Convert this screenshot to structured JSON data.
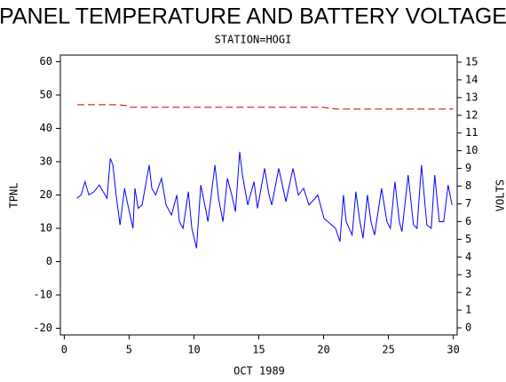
{
  "chart_data": {
    "type": "line",
    "title": "PANEL TEMPERATURE AND BATTERY VOLTAGE",
    "subtitle": "STATION=HOGI",
    "x_label": "OCT 1989",
    "y_label": "TPNL",
    "y2_label": "VOLTS",
    "xlim": [
      -0.3,
      30.3
    ],
    "xticks": [
      0,
      5,
      10,
      15,
      20,
      25,
      30
    ],
    "ylim": [
      -22,
      62
    ],
    "yticks": [
      -20,
      -10,
      0,
      10,
      20,
      30,
      40,
      50,
      60
    ],
    "y2lim": [
      -0.4,
      15.4
    ],
    "y2ticks": [
      0,
      1,
      2,
      3,
      4,
      5,
      6,
      7,
      8,
      9,
      10,
      11,
      12,
      13,
      14,
      15
    ],
    "series": [
      {
        "name": "TPNL",
        "color": "#0000ff",
        "axis": "y",
        "x": [
          0.96,
          1.3,
          1.6,
          1.9,
          2.3,
          2.7,
          3.0,
          3.3,
          3.55,
          3.75,
          4.0,
          4.3,
          4.65,
          4.85,
          5.3,
          5.45,
          5.7,
          6.0,
          6.55,
          6.75,
          7.05,
          7.5,
          7.85,
          8.27,
          8.68,
          8.88,
          9.16,
          9.57,
          9.84,
          10.2,
          10.53,
          10.94,
          11.08,
          11.62,
          11.9,
          12.24,
          12.58,
          12.92,
          13.2,
          13.53,
          13.74,
          14.15,
          14.63,
          14.9,
          15.45,
          15.79,
          16.0,
          16.54,
          16.82,
          17.09,
          17.64,
          18.05,
          18.46,
          18.87,
          19.34,
          19.55,
          20.03,
          20.92,
          21.26,
          21.53,
          21.74,
          22.2,
          22.49,
          22.76,
          23.04,
          23.38,
          23.65,
          23.93,
          24.47,
          24.88,
          25.15,
          25.5,
          25.84,
          26.04,
          26.52,
          26.93,
          27.2,
          27.55,
          27.96,
          28.3,
          28.57,
          28.92,
          29.26,
          29.6,
          29.9
        ],
        "values": [
          19,
          20,
          24,
          20,
          21,
          23,
          21,
          19,
          31,
          29,
          20,
          11,
          22,
          18,
          10,
          22,
          16,
          17,
          29,
          22,
          20,
          25,
          17,
          14,
          20,
          12,
          10,
          21,
          10,
          4,
          23,
          15,
          12,
          29,
          19,
          12,
          25,
          20,
          15,
          33,
          26,
          17,
          24,
          16,
          28,
          20,
          17,
          28,
          23,
          18,
          28,
          20,
          22,
          17,
          19,
          20,
          13,
          10,
          6,
          20,
          12,
          8,
          21,
          13,
          7,
          20,
          12,
          8,
          22,
          12,
          10,
          24,
          12,
          9,
          26,
          11,
          10,
          29,
          11,
          10,
          26,
          12,
          12,
          23,
          17
        ]
      },
      {
        "name": "VOLTS",
        "color": "#cc0000",
        "axis": "y2",
        "dashed": true,
        "x": [
          1,
          4,
          4.8,
          5,
          10,
          15,
          20,
          21,
          25,
          30
        ],
        "values": [
          12.6,
          12.6,
          12.55,
          12.45,
          12.45,
          12.45,
          12.45,
          12.35,
          12.35,
          12.35
        ]
      }
    ]
  }
}
